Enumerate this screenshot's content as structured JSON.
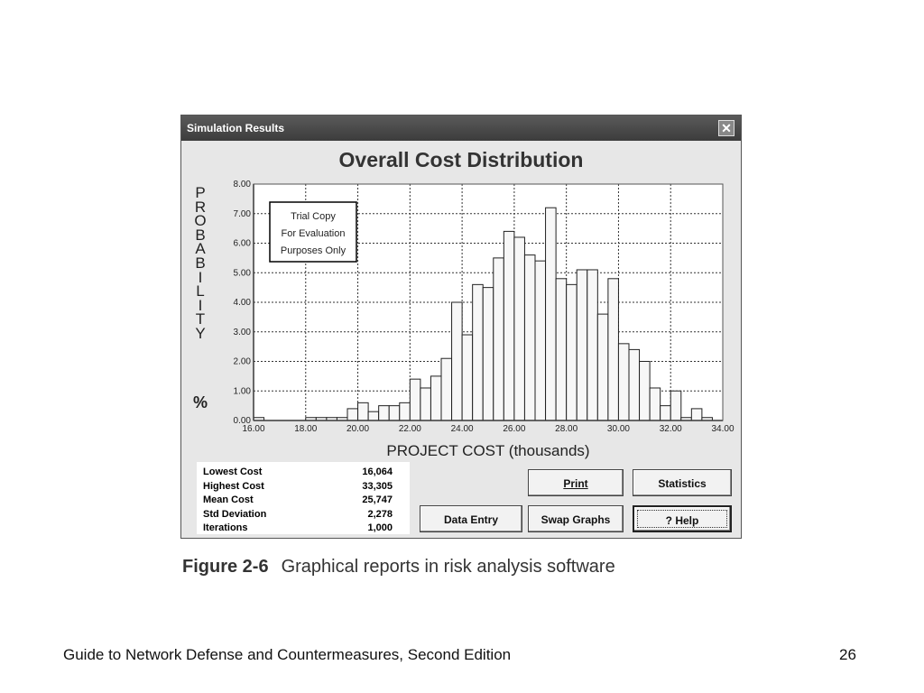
{
  "window": {
    "title": "Simulation Results",
    "close_glyph": "✕",
    "close_icon": "close-icon"
  },
  "chart_data": {
    "type": "bar",
    "title": "Overall Cost Distribution",
    "ylabel": "PROBABILITY",
    "ylabel_unit": "%",
    "xlabel": "PROJECT COST (thousands)",
    "xlim": [
      16.0,
      34.0
    ],
    "ylim": [
      0,
      8.0
    ],
    "x_ticks": [
      "16.00",
      "18.00",
      "20.00",
      "22.00",
      "24.00",
      "26.00",
      "28.00",
      "30.00",
      "32.00",
      "34.00"
    ],
    "y_ticks": [
      "0.00",
      "1.00",
      "2.00",
      "3.00",
      "4.00",
      "5.00",
      "6.00",
      "7.00",
      "8.00"
    ],
    "grid": true,
    "annotation": [
      "Trial Copy",
      "For Evaluation",
      "Purposes Only"
    ],
    "bin_width": 0.4,
    "bins_start": [
      16.0,
      16.4,
      16.8,
      17.2,
      17.6,
      18.0,
      18.4,
      18.8,
      19.2,
      19.6,
      20.0,
      20.4,
      20.8,
      21.2,
      21.6,
      22.0,
      22.4,
      22.8,
      23.2,
      23.6,
      24.0,
      24.4,
      24.8,
      25.2,
      25.6,
      26.0,
      26.4,
      26.8,
      27.2,
      27.6,
      28.0,
      28.4,
      28.8,
      29.2,
      29.6,
      30.0,
      30.4,
      30.8,
      31.2,
      31.6,
      32.0,
      32.4,
      32.8,
      33.2
    ],
    "values": [
      0.1,
      0.0,
      0.0,
      0.0,
      0.0,
      0.1,
      0.1,
      0.1,
      0.1,
      0.4,
      0.6,
      0.3,
      0.5,
      0.5,
      0.6,
      1.4,
      1.1,
      1.5,
      2.1,
      4.0,
      2.9,
      4.6,
      4.5,
      5.5,
      6.4,
      6.2,
      5.6,
      5.4,
      7.2,
      4.8,
      4.6,
      5.1,
      5.1,
      3.6,
      4.8,
      2.6,
      2.4,
      2.0,
      1.1,
      0.5,
      1.0,
      0.1,
      0.4,
      0.1
    ]
  },
  "stats": [
    {
      "label": "Lowest Cost",
      "value": "16,064"
    },
    {
      "label": "Highest Cost",
      "value": "33,305"
    },
    {
      "label": "Mean Cost",
      "value": "25,747"
    },
    {
      "label": "Std Deviation",
      "value": "2,278"
    },
    {
      "label": "Iterations",
      "value": "1,000"
    }
  ],
  "buttons": {
    "print": "Print",
    "statistics": "Statistics",
    "data_entry": "Data Entry",
    "swap_graphs": "Swap Graphs",
    "help": "? Help"
  },
  "caption": {
    "figure": "Figure 2-6",
    "text": "Graphical reports in risk analysis software"
  },
  "footer": {
    "book": "Guide to Network Defense and Countermeasures, Second Edition",
    "page": "26"
  }
}
